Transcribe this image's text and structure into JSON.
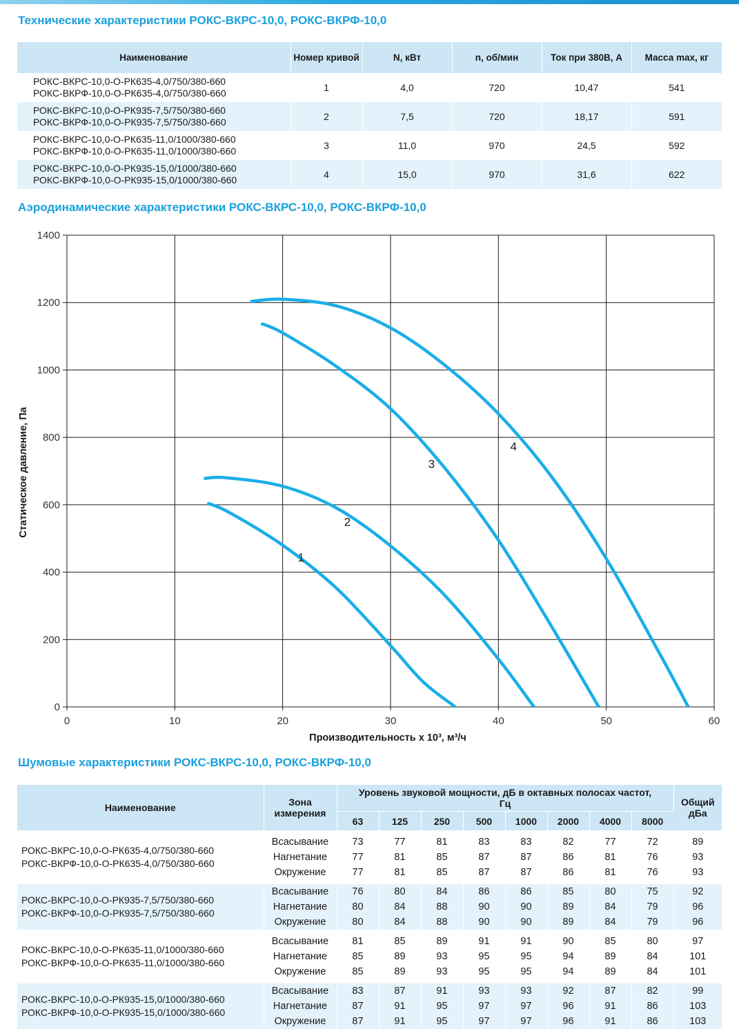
{
  "spec": {
    "title": "Технические характеристики РОКС-ВКРС-10,0, РОКС-ВКРФ-10,0",
    "headers": [
      "Наименование",
      "Номер кривой",
      "N, кВт",
      "n, об/мин",
      "Ток при 380В, А",
      "Масса max, кг"
    ],
    "rows": [
      {
        "name1": "РОКС-ВКРС-10,0-О-РК635-4,0/750/380-660",
        "name2": "РОКС-ВКРФ-10,0-О-РК635-4,0/750/380-660",
        "curve": "1",
        "power": "4,0",
        "rpm": "720",
        "current": "10,47",
        "mass": "541"
      },
      {
        "name1": "РОКС-ВКРС-10,0-О-РК935-7,5/750/380-660",
        "name2": "РОКС-ВКРФ-10,0-О-РК935-7,5/750/380-660",
        "curve": "2",
        "power": "7,5",
        "rpm": "720",
        "current": "18,17",
        "mass": "591"
      },
      {
        "name1": "РОКС-ВКРС-10,0-О-РК635-11,0/1000/380-660",
        "name2": "РОКС-ВКРФ-10,0-О-РК635-11,0/1000/380-660",
        "curve": "3",
        "power": "11,0",
        "rpm": "970",
        "current": "24,5",
        "mass": "592"
      },
      {
        "name1": "РОКС-ВКРС-10,0-О-РК935-15,0/1000/380-660",
        "name2": "РОКС-ВКРФ-10,0-О-РК935-15,0/1000/380-660",
        "curve": "4",
        "power": "15,0",
        "rpm": "970",
        "current": "31,6",
        "mass": "622"
      }
    ]
  },
  "aero": {
    "title": "Аэродинамические характеристики РОКС-ВКРС-10,0, РОКС-ВКРФ-10,0"
  },
  "chart_data": {
    "type": "line",
    "xlabel": "Производительность x 10³, м³/ч",
    "ylabel": "Статическое давление, Па",
    "xlim": [
      0,
      60
    ],
    "ylim": [
      0,
      1400
    ],
    "xticks": [
      0,
      10,
      20,
      30,
      40,
      50,
      60
    ],
    "yticks": [
      0,
      200,
      400,
      600,
      800,
      1000,
      1200,
      1400
    ],
    "grid": true,
    "line_color": "#1aaee8",
    "series": [
      {
        "name": "1",
        "x": [
          13.0,
          15.0,
          20.0,
          25.0,
          30.0,
          33.0,
          36.0
        ],
        "y": [
          605,
          578,
          480,
          352,
          182,
          75,
          0
        ]
      },
      {
        "name": "2",
        "x": [
          12.7,
          14.8,
          20.0,
          25.0,
          30.0,
          35.0,
          40.0,
          43.3
        ],
        "y": [
          678,
          680,
          655,
          590,
          478,
          332,
          142,
          0
        ]
      },
      {
        "name": "3",
        "x": [
          18.0,
          20.0,
          25.0,
          30.0,
          35.0,
          40.0,
          45.0,
          49.3
        ],
        "y": [
          1138,
          1110,
          1010,
          885,
          710,
          495,
          235,
          0
        ]
      },
      {
        "name": "4",
        "x": [
          17.0,
          20.0,
          25.0,
          30.0,
          35.0,
          40.0,
          45.0,
          50.0,
          55.0,
          57.6
        ],
        "y": [
          1203,
          1210,
          1190,
          1125,
          1015,
          870,
          680,
          440,
          155,
          0
        ]
      }
    ],
    "curve_labels": [
      {
        "text": "1",
        "x": 21.7,
        "y": 432
      },
      {
        "text": "2",
        "x": 26.0,
        "y": 537
      },
      {
        "text": "3",
        "x": 33.8,
        "y": 709
      },
      {
        "text": "4",
        "x": 41.4,
        "y": 761
      }
    ]
  },
  "noise": {
    "title": "Шумовые характеристики РОКС-ВКРС-10,0, РОКС-ВКРФ-10,0",
    "headers": {
      "name": "Наименование",
      "zone": "Зона измерения",
      "level": "Уровень звуковой мощности, дБ в октавных полосах частот, Гц",
      "total": "Общий дБа",
      "freqs": [
        "63",
        "125",
        "250",
        "500",
        "1000",
        "2000",
        "4000",
        "8000"
      ]
    },
    "groups": [
      {
        "name1": "РОКС-ВКРС-10,0-О-РК635-4,0/750/380-660",
        "name2": "РОКС-ВКРФ-10,0-О-РК635-4,0/750/380-660",
        "rows": [
          {
            "zone": "Всасывание",
            "values": [
              "73",
              "77",
              "81",
              "83",
              "83",
              "82",
              "77",
              "72"
            ],
            "total": "89"
          },
          {
            "zone": "Нагнетание",
            "values": [
              "77",
              "81",
              "85",
              "87",
              "87",
              "86",
              "81",
              "76"
            ],
            "total": "93"
          },
          {
            "zone": "Окружение",
            "values": [
              "77",
              "81",
              "85",
              "87",
              "87",
              "86",
              "81",
              "76"
            ],
            "total": "93"
          }
        ]
      },
      {
        "name1": "РОКС-ВКРС-10,0-О-РК935-7,5/750/380-660",
        "name2": "РОКС-ВКРФ-10,0-О-РК935-7,5/750/380-660",
        "rows": [
          {
            "zone": "Всасывание",
            "values": [
              "76",
              "80",
              "84",
              "86",
              "86",
              "85",
              "80",
              "75"
            ],
            "total": "92"
          },
          {
            "zone": "Нагнетание",
            "values": [
              "80",
              "84",
              "88",
              "90",
              "90",
              "89",
              "84",
              "79"
            ],
            "total": "96"
          },
          {
            "zone": "Окружение",
            "values": [
              "80",
              "84",
              "88",
              "90",
              "90",
              "89",
              "84",
              "79"
            ],
            "total": "96"
          }
        ]
      },
      {
        "name1": "РОКС-ВКРС-10,0-О-РК635-11,0/1000/380-660",
        "name2": "РОКС-ВКРФ-10,0-О-РК635-11,0/1000/380-660",
        "rows": [
          {
            "zone": "Всасывание",
            "values": [
              "81",
              "85",
              "89",
              "91",
              "91",
              "90",
              "85",
              "80"
            ],
            "total": "97"
          },
          {
            "zone": "Нагнетание",
            "values": [
              "85",
              "89",
              "93",
              "95",
              "95",
              "94",
              "89",
              "84"
            ],
            "total": "101"
          },
          {
            "zone": "Окружение",
            "values": [
              "85",
              "89",
              "93",
              "95",
              "95",
              "94",
              "89",
              "84"
            ],
            "total": "101"
          }
        ]
      },
      {
        "name1": "РОКС-ВКРС-10,0-О-РК935-15,0/1000/380-660",
        "name2": "РОКС-ВКРФ-10,0-О-РК935-15,0/1000/380-660",
        "rows": [
          {
            "zone": "Всасывание",
            "values": [
              "83",
              "87",
              "91",
              "93",
              "93",
              "92",
              "87",
              "82"
            ],
            "total": "99"
          },
          {
            "zone": "Нагнетание",
            "values": [
              "87",
              "91",
              "95",
              "97",
              "97",
              "96",
              "91",
              "86"
            ],
            "total": "103"
          },
          {
            "zone": "Окружение",
            "values": [
              "87",
              "91",
              "95",
              "97",
              "97",
              "96",
              "91",
              "86"
            ],
            "total": "103"
          }
        ]
      }
    ]
  }
}
